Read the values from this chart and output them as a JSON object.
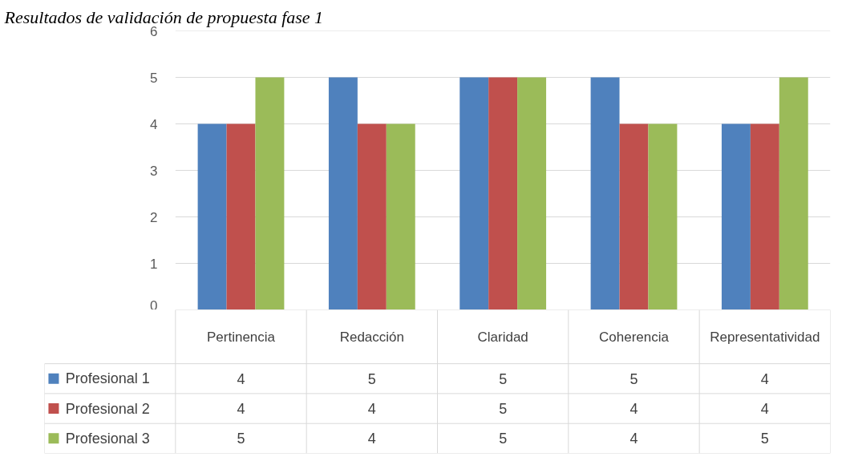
{
  "chart_data": {
    "type": "bar",
    "title": "Resultados de validación de propuesta fase 1",
    "categories": [
      "Pertinencia",
      "Redacción",
      "Claridad",
      "Coherencia",
      "Representatividad"
    ],
    "series": [
      {
        "name": "Profesional 1",
        "color": "#4f81bd",
        "values": [
          4,
          5,
          5,
          5,
          4
        ]
      },
      {
        "name": "Profesional 2",
        "color": "#c0504d",
        "values": [
          4,
          4,
          5,
          4,
          4
        ]
      },
      {
        "name": "Profesional 3",
        "color": "#9bbb59",
        "values": [
          5,
          4,
          5,
          4,
          5
        ]
      }
    ],
    "ylim": [
      0,
      6
    ],
    "yticks": [
      0,
      1,
      2,
      3,
      4,
      5,
      6
    ],
    "grid": "y",
    "legend": "bottom",
    "data_labels": true
  }
}
